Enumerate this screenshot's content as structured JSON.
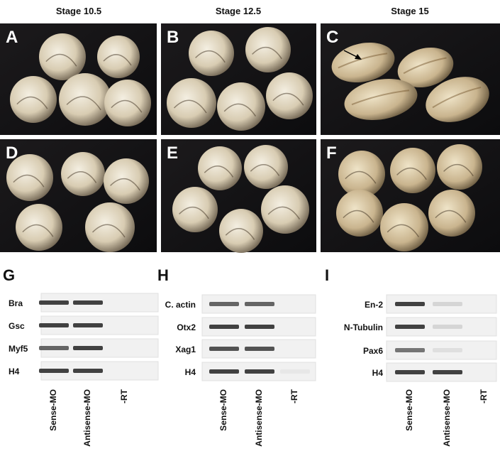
{
  "stages": [
    "Stage 10.5",
    "Stage 12.5",
    "Stage 15"
  ],
  "photo_panels": [
    "A",
    "B",
    "C",
    "D",
    "E",
    "F"
  ],
  "blots": [
    {
      "label": "G",
      "genes": [
        "Bra",
        "Gsc",
        "Myf5",
        "H4"
      ],
      "lanes": [
        "Sense-MO",
        "Antisense-MO",
        "-RT"
      ]
    },
    {
      "label": "H",
      "genes": [
        "C. actin",
        "Otx2",
        "Xag1",
        "H4"
      ],
      "lanes": [
        "Sense-MO",
        "Antisense-MO",
        "-RT"
      ]
    },
    {
      "label": "I",
      "genes": [
        "En-2",
        "N-Tubulin",
        "Pax6",
        "H4"
      ],
      "lanes": [
        "Sense-MO",
        "Antisense-MO",
        "-RT"
      ]
    }
  ]
}
